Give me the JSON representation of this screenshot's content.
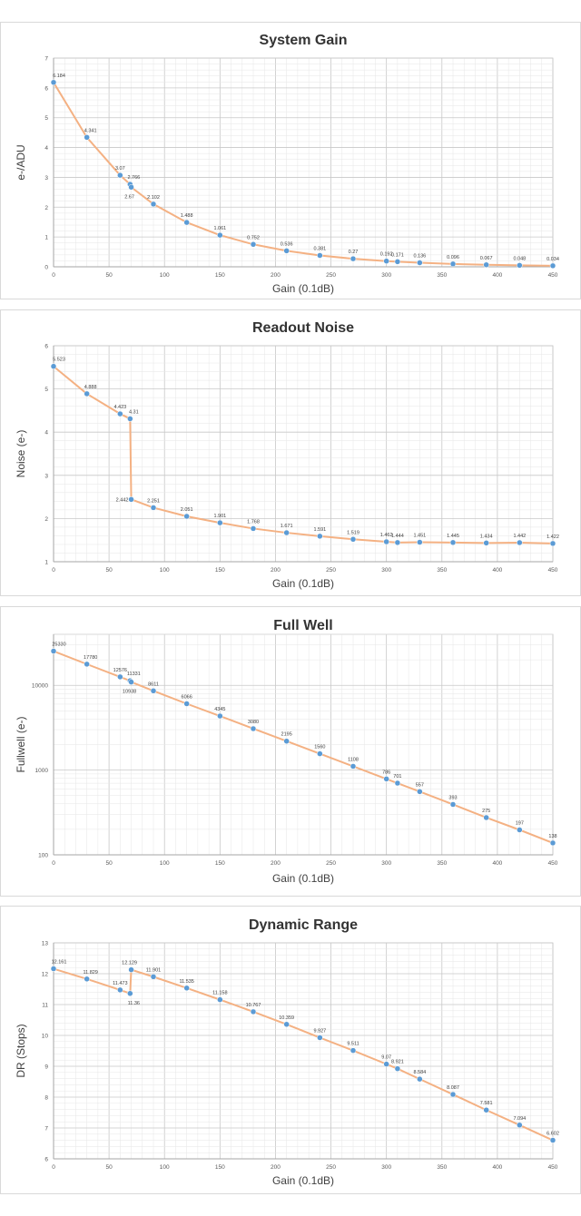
{
  "chart_data": [
    {
      "type": "line",
      "title": "System Gain",
      "xlabel": "Gain (0.1dB)",
      "ylabel": "e-/ADU",
      "xlim": [
        0,
        450
      ],
      "ylim": [
        0,
        7
      ],
      "xticks": [
        "0",
        "50",
        "100",
        "150",
        "200",
        "250",
        "300",
        "350",
        "400",
        "450"
      ],
      "yticks": [
        "0",
        "1",
        "2",
        "3",
        "4",
        "5",
        "6",
        "7"
      ],
      "grid": true,
      "log_y": false,
      "series_color": "#5b9bd5",
      "line_color": "#f4b183",
      "x": [
        0,
        30,
        60,
        69,
        70,
        90,
        120,
        150,
        180,
        210,
        240,
        270,
        300,
        310,
        330,
        360,
        390,
        420,
        450
      ],
      "y": [
        6.184,
        4.341,
        3.07,
        2.766,
        2.67,
        2.102,
        1.488,
        1.061,
        0.752,
        0.536,
        0.381,
        0.27,
        0.192,
        0.171,
        0.136,
        0.096,
        0.067,
        0.048,
        0.034
      ],
      "labels": [
        "6.184",
        "4.341",
        "3.07",
        "2.766",
        "2.67",
        "2.102",
        "1.488",
        "1.061",
        "0.752",
        "0.536",
        "0.381",
        "0.27",
        "0.192",
        "0.171",
        "0.136",
        "0.096",
        "0.067",
        "0.048",
        "0.034"
      ]
    },
    {
      "type": "line",
      "title": "Readout Noise",
      "xlabel": "Gain (0.1dB)",
      "ylabel": "Noise (e-)",
      "xlim": [
        0,
        450
      ],
      "ylim": [
        1,
        6
      ],
      "xticks": [
        "0",
        "50",
        "100",
        "150",
        "200",
        "250",
        "300",
        "350",
        "400",
        "450"
      ],
      "yticks": [
        "1",
        "2",
        "3",
        "4",
        "5",
        "6"
      ],
      "grid": true,
      "log_y": false,
      "series_color": "#5b9bd5",
      "line_color": "#f4b183",
      "x": [
        0,
        30,
        60,
        69,
        70,
        90,
        120,
        150,
        180,
        210,
        240,
        270,
        300,
        310,
        330,
        360,
        390,
        420,
        450
      ],
      "y": [
        5.523,
        4.888,
        4.423,
        4.31,
        2.442,
        2.251,
        2.051,
        1.901,
        1.768,
        1.671,
        1.591,
        1.519,
        1.462,
        1.444,
        1.451,
        1.445,
        1.434,
        1.442,
        1.422
      ],
      "labels": [
        "5.523",
        "4.888",
        "4.423",
        "4.31",
        "2.442",
        "2.251",
        "2.051",
        "1.901",
        "1.768",
        "1.671",
        "1.591",
        "1.519",
        "1.462",
        "1.444",
        "1.451",
        "1.445",
        "1.434",
        "1.442",
        "1.422"
      ]
    },
    {
      "type": "line",
      "title": "Full Well",
      "xlabel": "Gain (0.1dB)",
      "ylabel": "Fullwell (e-)",
      "xlim": [
        0,
        450
      ],
      "ylim": [
        100,
        40000
      ],
      "xticks": [
        "0",
        "50",
        "100",
        "150",
        "200",
        "250",
        "300",
        "350",
        "400",
        "450"
      ],
      "yticks": [
        "100",
        "1000",
        "10000"
      ],
      "grid": true,
      "log_y": true,
      "series_color": "#5b9bd5",
      "line_color": "#f4b183",
      "x": [
        0,
        30,
        60,
        69,
        70,
        90,
        120,
        150,
        180,
        210,
        240,
        270,
        300,
        310,
        330,
        360,
        390,
        420,
        450
      ],
      "y": [
        25330,
        17780,
        12576,
        11331,
        10938,
        8611,
        6066,
        4345,
        3080,
        2195,
        1560,
        1108,
        786,
        701,
        557,
        393,
        275,
        197,
        138
      ],
      "labels": [
        "25330",
        "17780",
        "12576",
        "11331",
        "10938",
        "8611",
        "6066",
        "4345",
        "3080",
        "2195",
        "1560",
        "1108",
        "786",
        "701",
        "557",
        "393",
        "275",
        "197",
        "138"
      ]
    },
    {
      "type": "line",
      "title": "Dynamic Range",
      "xlabel": "Gain (0.1dB)",
      "ylabel": "DR (Stops)",
      "xlim": [
        0,
        450
      ],
      "ylim": [
        6,
        13
      ],
      "xticks": [
        "0",
        "50",
        "100",
        "150",
        "200",
        "250",
        "300",
        "350",
        "400",
        "450"
      ],
      "yticks": [
        "6",
        "7",
        "8",
        "9",
        "10",
        "11",
        "12",
        "13"
      ],
      "grid": true,
      "log_y": false,
      "series_color": "#5b9bd5",
      "line_color": "#f4b183",
      "x": [
        0,
        30,
        60,
        69,
        70,
        90,
        120,
        150,
        180,
        210,
        240,
        270,
        300,
        310,
        330,
        360,
        390,
        420,
        450
      ],
      "y": [
        12.161,
        11.829,
        11.473,
        11.36,
        12.129,
        11.901,
        11.535,
        11.158,
        10.767,
        10.359,
        9.927,
        9.511,
        9.07,
        8.921,
        8.584,
        8.087,
        7.581,
        7.094,
        6.602
      ],
      "labels": [
        "12.161",
        "11.829",
        "11.473",
        "11.36",
        "12.129",
        "11.901",
        "11.535",
        "11.158",
        "10.767",
        "10.359",
        "9.927",
        "9.511",
        "9.07",
        "8.921",
        "8.584",
        "8.087",
        "7.581",
        "7.094",
        "6.602"
      ]
    }
  ]
}
